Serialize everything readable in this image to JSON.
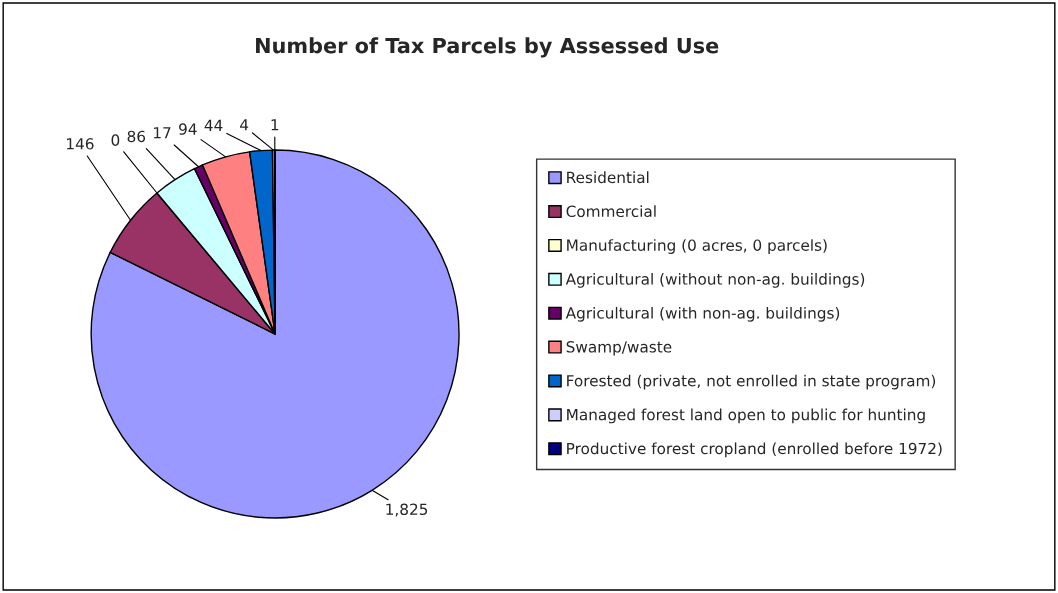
{
  "chart_data": {
    "type": "pie",
    "title": "Number of Tax Parcels by Assessed Use",
    "categories": [
      "Residential",
      "Commercial",
      "Manufacturing (0 acres, 0 parcels)",
      "Agricultural (without non-ag. buildings)",
      "Agricultural (with non-ag. buildings)",
      "Swamp/waste",
      "Forested (private, not enrolled in state program)",
      "Managed forest land open to public for hunting",
      "Productive forest cropland (enrolled before 1972)"
    ],
    "values": [
      1825,
      146,
      0,
      86,
      17,
      94,
      44,
      4,
      1
    ],
    "colors": [
      "#9999ff",
      "#993366",
      "#ffffcc",
      "#ccffff",
      "#660066",
      "#ff8080",
      "#0066cc",
      "#ccccff",
      "#000080"
    ],
    "value_labels": [
      "1,825",
      "146",
      "0",
      "86",
      "17",
      "94",
      "44",
      "4",
      "1"
    ],
    "legend": "right"
  }
}
